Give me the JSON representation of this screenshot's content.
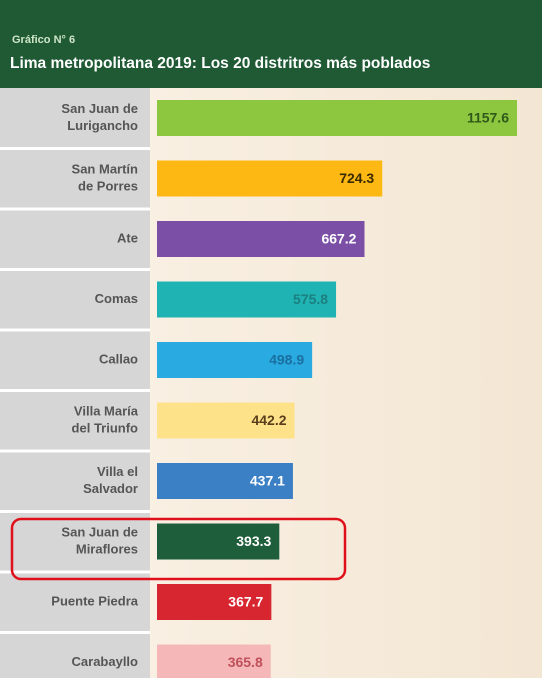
{
  "chart_data": {
    "type": "bar",
    "orientation": "horizontal",
    "subtitle": "Gráfico N° 6",
    "title": "Lima metropolitana 2019: Los 20 distritros más poblados",
    "categories": [
      [
        "San Juan de",
        "Lurigancho"
      ],
      [
        "San Martín",
        "de Porres"
      ],
      [
        "Ate"
      ],
      [
        "Comas"
      ],
      [
        "Callao"
      ],
      [
        "Villa María",
        "del Triunfo"
      ],
      [
        "Villa el",
        "Salvador"
      ],
      [
        "San Juan de",
        "Miraflores"
      ],
      [
        "Puente Piedra"
      ],
      [
        "Carabayllo"
      ]
    ],
    "values": [
      1157.6,
      724.3,
      667.2,
      575.8,
      498.9,
      442.2,
      437.1,
      393.3,
      367.7,
      365.8
    ],
    "colors": [
      "#8dc63f",
      "#fdb813",
      "#7b4fa6",
      "#1fb3b3",
      "#29abe2",
      "#fde28a",
      "#3b7fc4",
      "#1e5e3a",
      "#d7262f",
      "#f6b7b9"
    ],
    "label_colors": [
      "#2f5a1a",
      "#3a2a00",
      "#ffffff",
      "#1d7f7f",
      "#1a6fa0",
      "#5a3e1b",
      "#ffffff",
      "#ffffff",
      "#ffffff",
      "#c0505a"
    ]
  }
}
